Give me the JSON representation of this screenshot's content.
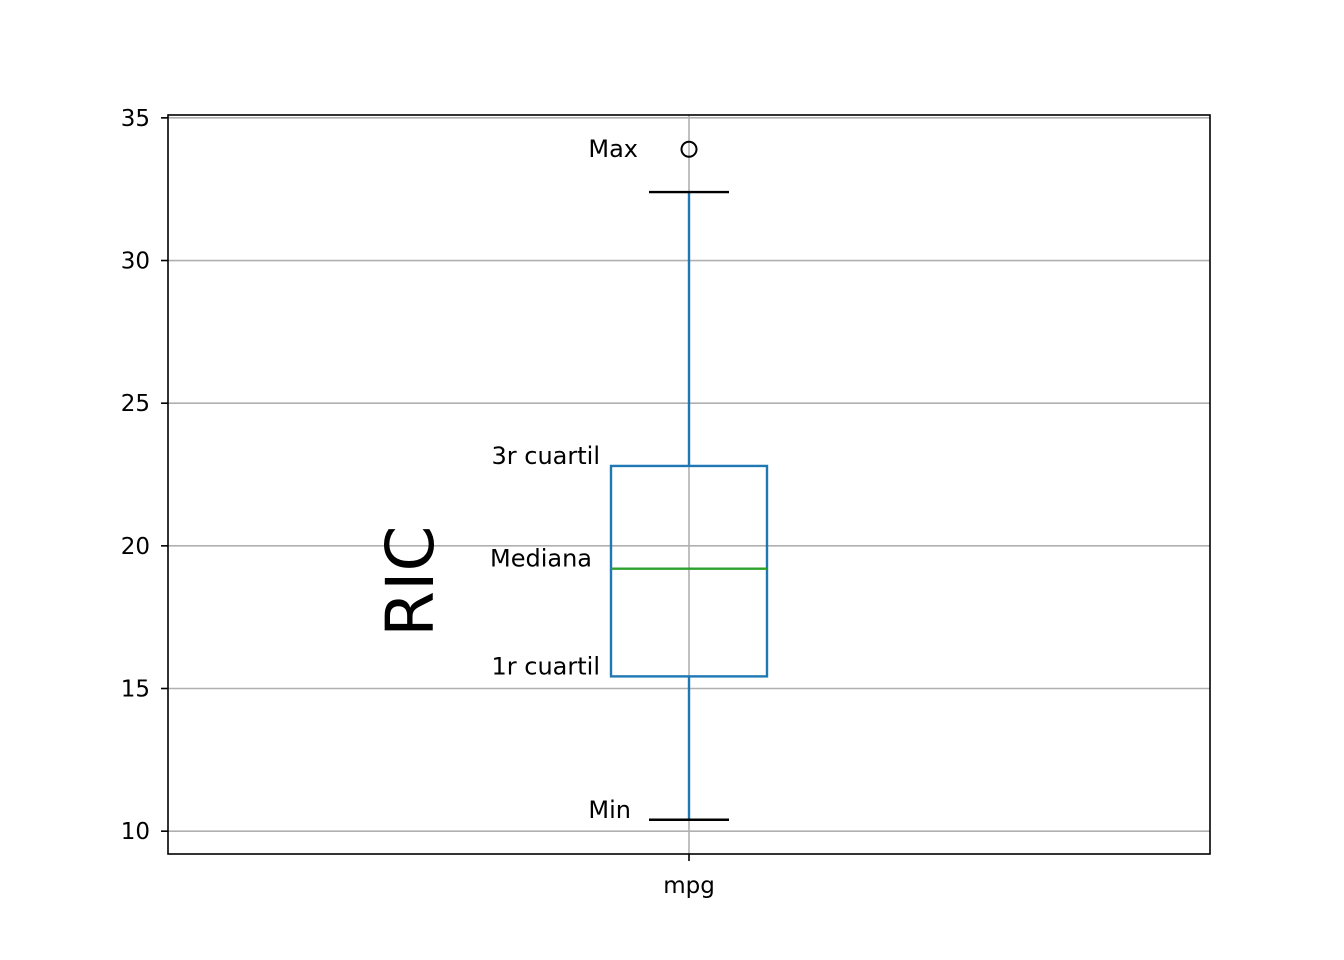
{
  "chart_data": {
    "type": "box",
    "categories": [
      "mpg"
    ],
    "series": [
      {
        "min": 10.4,
        "q1": 15.425,
        "median": 19.2,
        "q3": 22.8,
        "max": 32.4,
        "outliers": [
          33.9
        ]
      }
    ],
    "ylim": [
      9.2,
      35.1
    ],
    "yticks": [
      10,
      15,
      20,
      25,
      30,
      35
    ],
    "grid": true,
    "annotations": {
      "max": "Max",
      "q3": "3r cuartil",
      "median": "Mediana",
      "q1": "1r cuartil",
      "min": "Min",
      "iqr": "RIC"
    },
    "colors": {
      "box": "#1f77b4",
      "median": "#2ca02c",
      "caps": "#000000",
      "grid": "#b0b0b0"
    }
  }
}
